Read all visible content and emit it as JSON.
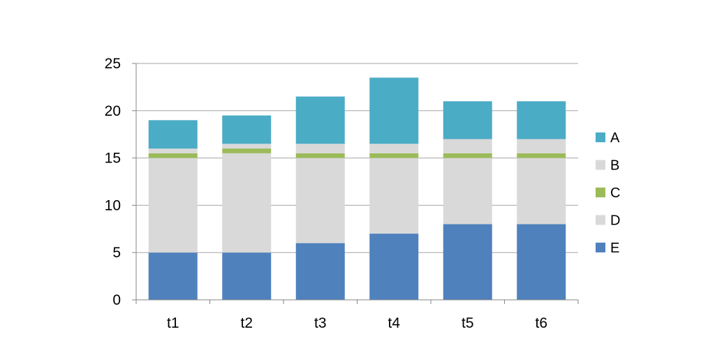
{
  "chart_data": {
    "type": "bar",
    "stacked": true,
    "title": "",
    "xlabel": "",
    "ylabel": "",
    "categories": [
      "t1",
      "t2",
      "t3",
      "t4",
      "t5",
      "t6"
    ],
    "ylim": [
      0,
      25
    ],
    "yticks": [
      0,
      5,
      10,
      15,
      20,
      25
    ],
    "grid": true,
    "legend_position": "right",
    "series": [
      {
        "name": "E",
        "color": "#4F81BD",
        "values": [
          5,
          5,
          6,
          7,
          8,
          8
        ]
      },
      {
        "name": "D",
        "color": "#D9D9D9",
        "values": [
          10,
          10.5,
          9,
          8,
          7,
          7
        ]
      },
      {
        "name": "C",
        "color": "#9BBB59",
        "values": [
          0.5,
          0.5,
          0.5,
          0.5,
          0.5,
          0.5
        ]
      },
      {
        "name": "B",
        "color": "#D9D9D9",
        "values": [
          0.5,
          0.5,
          1,
          1,
          1.5,
          1.5
        ]
      },
      {
        "name": "A",
        "color": "#4BACC6",
        "values": [
          3,
          3,
          5,
          7,
          4,
          4
        ]
      }
    ]
  }
}
